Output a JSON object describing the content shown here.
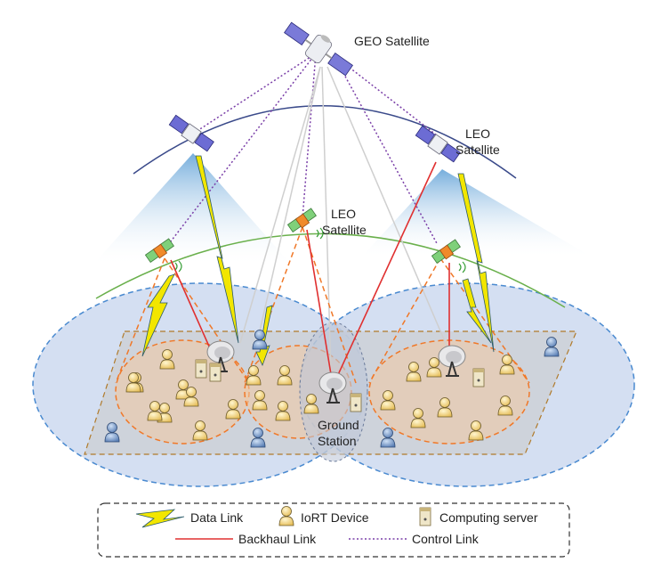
{
  "labels": {
    "geo": "GEO Satellite",
    "leo_right_1": "LEO",
    "leo_right_2": "Satellite",
    "leo_center_1": "LEO",
    "leo_center_2": "Satellite",
    "ground_1": "Ground",
    "ground_2": "Station"
  },
  "legend": {
    "data_link": "Data Link",
    "iort_device": "IoRT Device",
    "computing_server": "Computing server",
    "backhaul_link": "Backhaul Link",
    "control_link": "Control Link"
  },
  "colors": {
    "backhaul": "#e03030",
    "control": "#7a3fa8",
    "beam_dash": "#f07828",
    "coverage_fill": "#c9d6f0",
    "coverage_stroke": "#4a8ad0",
    "orbit_leo_low": "#6ab04c",
    "orbit_leo_high": "#3a4a8a",
    "lightning": "#f2e600",
    "device": "#f4d98a",
    "device_blue": "#6f93c4"
  }
}
